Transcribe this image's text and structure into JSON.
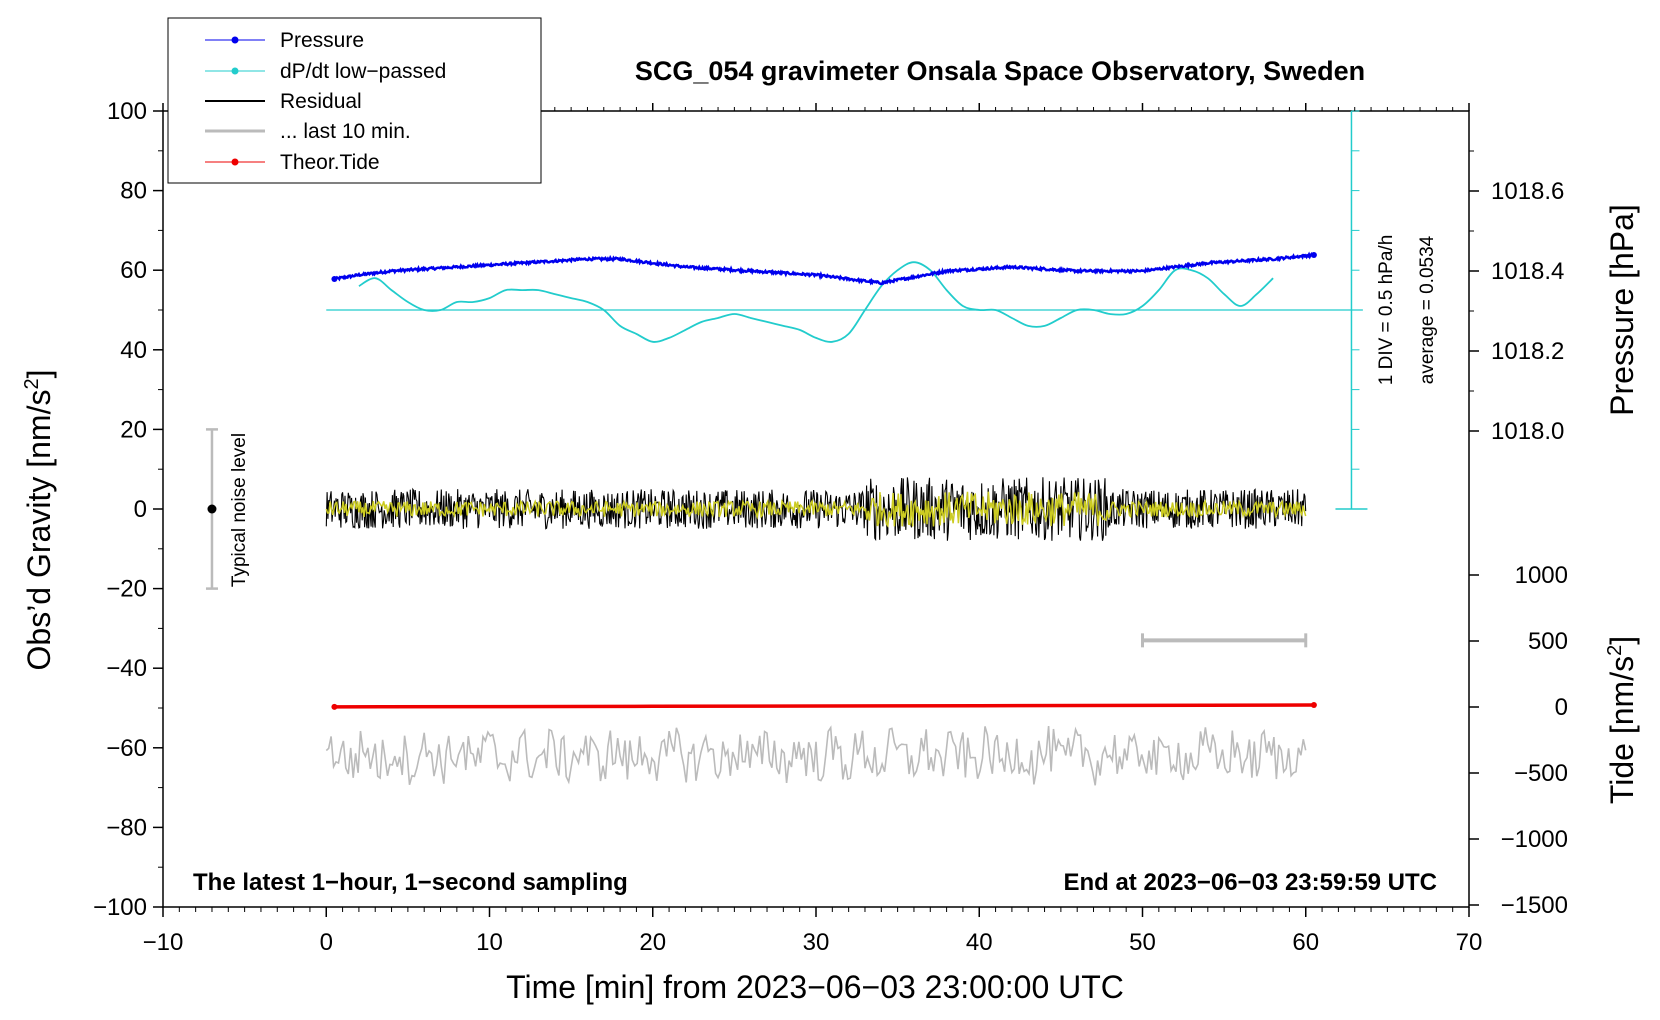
{
  "chart_data": {
    "type": "line",
    "title": "SCG_054 gravimeter Onsala Space Observatory, Sweden",
    "xlabel": "Time [min] from 2023−06−03 23:00:00 UTC",
    "ylabel_left_main": "Obs’d Gravity [nm/s",
    "ylabel_left_sup": "2",
    "ylabel_left_end": "]",
    "ylabel_right_pressure": "Pressure [hPa]",
    "ylabel_right_tide_main": "Tide [nm/s",
    "ylabel_right_tide_sup": "2",
    "ylabel_right_tide_end": "]",
    "xlim": [
      -10,
      70
    ],
    "ylim": [
      -100,
      100
    ],
    "x_ticks": [
      "−10",
      "0",
      "10",
      "20",
      "30",
      "40",
      "50",
      "60",
      "70"
    ],
    "y_ticks": [
      "100",
      "80",
      "60",
      "40",
      "20",
      "0",
      "−20",
      "−40",
      "−60",
      "−80",
      "−100"
    ],
    "pressure_ticks": [
      "1018.6",
      "1018.4",
      "1018.2",
      "1018.0"
    ],
    "tide_ticks": [
      "1000",
      "500",
      "0",
      "−500",
      "−1000",
      "−1500"
    ],
    "legend": [
      {
        "label": "Pressure",
        "color": "#0000ee"
      },
      {
        "label": "dP/dt low−passed",
        "color": "#22cccc"
      },
      {
        "label": "Residual",
        "color": "#000000"
      },
      {
        "label": "... last 10 min.",
        "color": "#bbbbbb"
      },
      {
        "label": "Theor.Tide",
        "color": "#ee0000"
      }
    ],
    "annotations": {
      "noise": "Typical noise level",
      "left_bottom": "The latest 1−hour, 1−second sampling",
      "right_bottom": "End at 2023−06−03 23:59:59 UTC",
      "div": "1 DIV = 0.5 hPa/h",
      "average": "average = 0.0534"
    },
    "pressure_series": {
      "name": "Pressure",
      "unit": "hPa",
      "x": [
        0.5,
        2,
        4,
        6,
        8,
        10,
        12,
        14,
        16,
        18,
        20,
        22,
        24,
        26,
        28,
        30,
        32,
        34,
        36,
        38,
        40,
        42,
        44,
        46,
        48,
        50,
        52,
        54,
        56,
        58,
        60.5
      ],
      "values": [
        1018.38,
        1018.39,
        1018.4,
        1018.405,
        1018.41,
        1018.415,
        1018.42,
        1018.425,
        1018.43,
        1018.43,
        1018.42,
        1018.41,
        1018.405,
        1018.4,
        1018.395,
        1018.39,
        1018.38,
        1018.37,
        1018.385,
        1018.4,
        1018.405,
        1018.41,
        1018.405,
        1018.4,
        1018.4,
        1018.4,
        1018.41,
        1018.42,
        1018.425,
        1018.43,
        1018.44
      ]
    },
    "dpdt_series": {
      "name": "dP/dt low-passed",
      "unit": "gravity-axis nm/s2 (1 DIV = 0.5 hPa/h)",
      "baseline": 50,
      "x": [
        2,
        3,
        4,
        5,
        6,
        7,
        8,
        9,
        10,
        11,
        12,
        13,
        14,
        15,
        16,
        17,
        18,
        19,
        20,
        21,
        22,
        23,
        24,
        25,
        26,
        27,
        28,
        29,
        30,
        31,
        32,
        33,
        34,
        35,
        36,
        37,
        38,
        39,
        40,
        41,
        42,
        43,
        44,
        45,
        46,
        47,
        48,
        49,
        50,
        51,
        52,
        53,
        54,
        55,
        56,
        57,
        58
      ],
      "values": [
        56,
        58,
        55,
        52,
        50,
        50,
        52,
        52,
        53,
        55,
        55,
        55,
        54,
        53,
        52,
        50,
        46,
        44,
        42,
        43,
        45,
        47,
        48,
        49,
        48,
        47,
        46,
        45,
        43,
        42,
        44,
        50,
        56,
        60,
        62,
        60,
        55,
        51,
        50,
        50,
        48,
        46,
        46,
        48,
        50,
        50,
        49,
        49,
        51,
        55,
        60,
        60,
        58,
        54,
        51,
        54,
        58
      ]
    },
    "residual_series": {
      "name": "Residual",
      "x_range": [
        0,
        60
      ],
      "center": 0,
      "typical_amplitude": 5,
      "max_amplitude": 13
    },
    "residual_last10_series": {
      "name": "... last 10 min.",
      "x_range": [
        0,
        60
      ],
      "center": -62,
      "typical_amplitude": 6
    },
    "filtered_series": {
      "name": "low-passed residual",
      "x_range": [
        0,
        60
      ],
      "center": 0,
      "typical_amplitude": 2
    },
    "tide_series": {
      "name": "Theor.Tide",
      "unit": "nm/s2",
      "x": [
        0.5,
        20,
        40,
        60.5
      ],
      "values": [
        1,
        5,
        10,
        15
      ]
    },
    "noise_bar": {
      "x": -7,
      "y_low": -20,
      "y_high": 20,
      "center": 0
    },
    "window_bar": {
      "x_start": 50,
      "x_end": 60,
      "y": -33
    }
  }
}
